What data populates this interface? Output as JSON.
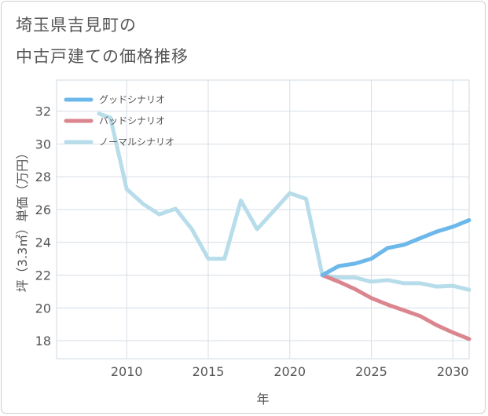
{
  "title_line1": "埼玉県吉見町の",
  "title_line2": "中古戸建ての価格推移",
  "chart_data": {
    "type": "line",
    "xlabel": "年",
    "ylabel": "坪（3.3㎡）単価（万円）",
    "xlim": [
      2005.7,
      2031
    ],
    "ylim": [
      16.9,
      33.9
    ],
    "xticks": [
      2010,
      2015,
      2020,
      2025,
      2030
    ],
    "yticks": [
      18,
      20,
      22,
      24,
      26,
      28,
      30,
      32
    ],
    "grid": true,
    "legend_position": "top-left",
    "series": [
      {
        "name": "グッドシナリオ",
        "color": "#6cb8ea",
        "x": [
          2022,
          2023,
          2024,
          2025,
          2026,
          2027,
          2028,
          2029,
          2030,
          2031
        ],
        "y": [
          22.0,
          22.55,
          22.7,
          23.0,
          23.65,
          23.85,
          24.25,
          24.65,
          24.95,
          25.35
        ]
      },
      {
        "name": "バッドシナリオ",
        "color": "#db868f",
        "x": [
          2022,
          2023,
          2024,
          2025,
          2026,
          2027,
          2028,
          2029,
          2030,
          2031
        ],
        "y": [
          22.0,
          21.6,
          21.15,
          20.6,
          20.2,
          19.85,
          19.5,
          18.95,
          18.5,
          18.1
        ]
      },
      {
        "name": "ノーマルシナリオ",
        "color": "#b7dcea",
        "x": [
          2008.3,
          2009,
          2010,
          2011,
          2012,
          2013,
          2014,
          2015,
          2016,
          2017,
          2018,
          2019,
          2020,
          2021,
          2022,
          2023,
          2024,
          2025,
          2026,
          2027,
          2028,
          2029,
          2030,
          2031
        ],
        "y": [
          31.85,
          31.6,
          27.25,
          26.35,
          25.7,
          26.05,
          24.8,
          23.0,
          23.0,
          26.55,
          24.8,
          25.9,
          27.0,
          26.65,
          22.0,
          21.85,
          21.85,
          21.6,
          21.7,
          21.5,
          21.5,
          21.3,
          21.35,
          21.1
        ]
      }
    ]
  }
}
